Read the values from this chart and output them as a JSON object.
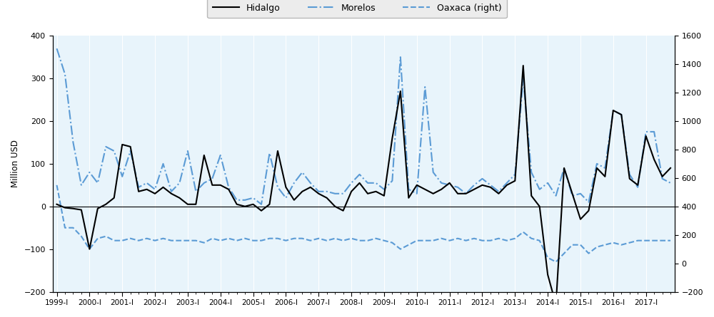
{
  "ylabel_left": "Million USD",
  "background_color": "#e8f4fb",
  "blue_color": "#5b9bd5",
  "legend_labels": [
    "Hidalgo",
    "Morelos",
    "Oaxaca (right)"
  ],
  "ylim_left": [
    -200,
    400
  ],
  "ylim_right": [
    -200,
    1600
  ],
  "yticks_left": [
    -200,
    -100,
    0,
    100,
    200,
    300,
    400
  ],
  "yticks_right": [
    -200,
    0,
    200,
    400,
    600,
    800,
    1000,
    1200,
    1400,
    1600
  ],
  "x_tick_labels": [
    "1999-I",
    "2000-I",
    "2001-I",
    "2002-I",
    "2003-I",
    "2004-I",
    "2005-I",
    "2006-I",
    "2007-I",
    "2008-I",
    "2009-I",
    "2010-I",
    "2011-I",
    "2012-I",
    "2013-I",
    "2014-I",
    "2015-I",
    "2016-I",
    "2017-I"
  ],
  "hidalgo": [
    5,
    -3,
    -5,
    -8,
    -100,
    -5,
    5,
    20,
    145,
    140,
    35,
    40,
    30,
    45,
    30,
    20,
    5,
    5,
    120,
    50,
    50,
    40,
    5,
    0,
    5,
    -10,
    5,
    130,
    45,
    15,
    35,
    45,
    30,
    20,
    0,
    -10,
    35,
    55,
    30,
    35,
    25,
    160,
    270,
    20,
    50,
    40,
    30,
    40,
    55,
    30,
    30,
    40,
    50,
    45,
    30,
    50,
    60,
    330,
    25,
    0,
    -160,
    -230,
    90,
    30,
    -30,
    -10,
    90,
    70,
    225,
    215,
    65,
    50,
    165,
    110,
    70,
    90
  ],
  "morelos": [
    370,
    310,
    150,
    50,
    80,
    55,
    140,
    130,
    70,
    130,
    45,
    55,
    40,
    100,
    35,
    55,
    130,
    35,
    55,
    65,
    120,
    45,
    15,
    15,
    20,
    5,
    125,
    45,
    20,
    55,
    80,
    55,
    35,
    35,
    30,
    30,
    55,
    75,
    55,
    55,
    40,
    60,
    350,
    40,
    30,
    280,
    80,
    55,
    50,
    45,
    30,
    50,
    65,
    50,
    35,
    55,
    75,
    300,
    80,
    40,
    55,
    25,
    90,
    25,
    30,
    10,
    100,
    90,
    225,
    215,
    75,
    45,
    175,
    175,
    65,
    55
  ],
  "oaxaca": [
    50,
    -50,
    -50,
    -70,
    -100,
    -75,
    -70,
    -80,
    -80,
    -75,
    -80,
    -75,
    -80,
    -75,
    -80,
    -80,
    -80,
    -80,
    -85,
    -75,
    -80,
    -75,
    -80,
    -75,
    -80,
    -80,
    -75,
    -75,
    -80,
    -75,
    -75,
    -80,
    -75,
    -80,
    -75,
    -80,
    -75,
    -80,
    -80,
    -75,
    -80,
    -85,
    -100,
    -90,
    -80,
    -80,
    -80,
    -75,
    -80,
    -75,
    -80,
    -75,
    -80,
    -80,
    -75,
    -80,
    -75,
    -60,
    -75,
    -80,
    -120,
    -130,
    -110,
    -90,
    -90,
    -110,
    -95,
    -90,
    -85,
    -90,
    -85,
    -80,
    -80,
    -80,
    -80,
    -80
  ]
}
